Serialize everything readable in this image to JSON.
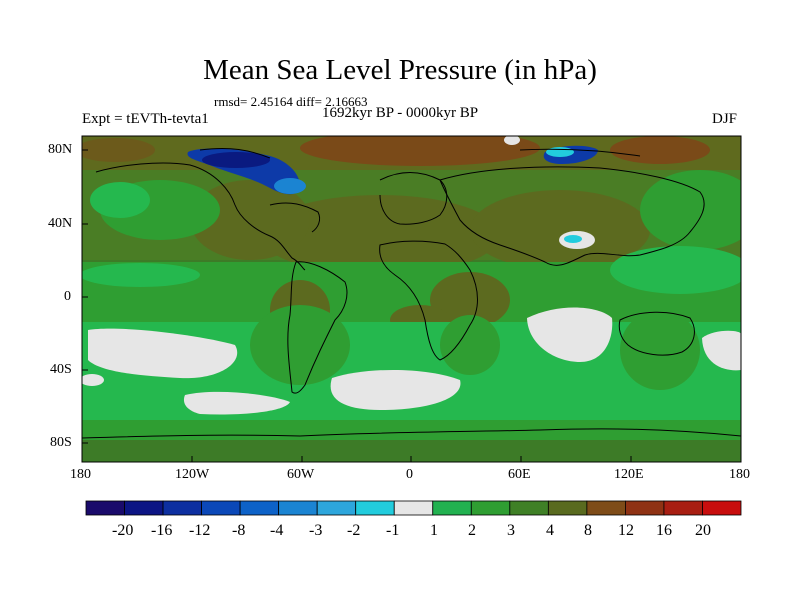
{
  "title": "Mean Sea Level Pressure (in hPa)",
  "stats": "rmsd= 2.45164 diff= 2.16663",
  "period": "1692kyr BP - 0000kyr BP",
  "experiment": "Expt = tEVTh-tevta1",
  "season": "DJF",
  "map": {
    "projection": "cylindrical equidistant",
    "lon_range": [
      -180,
      180
    ],
    "lat_range": [
      -90,
      90
    ],
    "lon_ticks": [
      "180",
      "120W",
      "60W",
      "0",
      "60E",
      "120E",
      "180"
    ],
    "lat_ticks": [
      "80N",
      "40N",
      "0",
      "40S",
      "80S"
    ]
  },
  "colorbar": {
    "levels": [
      "-20",
      "-16",
      "-12",
      "-8",
      "-4",
      "-3",
      "-2",
      "-1",
      "1",
      "2",
      "3",
      "4",
      "8",
      "12",
      "16",
      "20"
    ],
    "colors": [
      "#1a0a6b",
      "#0c1584",
      "#0d2fa0",
      "#0b48b8",
      "#0d62c8",
      "#1b84d2",
      "#2da6dc",
      "#22ccdd",
      "#e6e6e6",
      "#22b150",
      "#2f9e32",
      "#3f8026",
      "#596a1f",
      "#7e4c18",
      "#8f3214",
      "#a81e12",
      "#c80e0e"
    ]
  },
  "palette": {
    "ocean_green": "#239a3a",
    "land_olive": "#4f7b26",
    "dark_olive": "#62661d",
    "bright_green": "#25b84e",
    "light_gray": "#e6e6e6",
    "brown": "#7a4a18",
    "blue_low": "#0d3aa8"
  }
}
